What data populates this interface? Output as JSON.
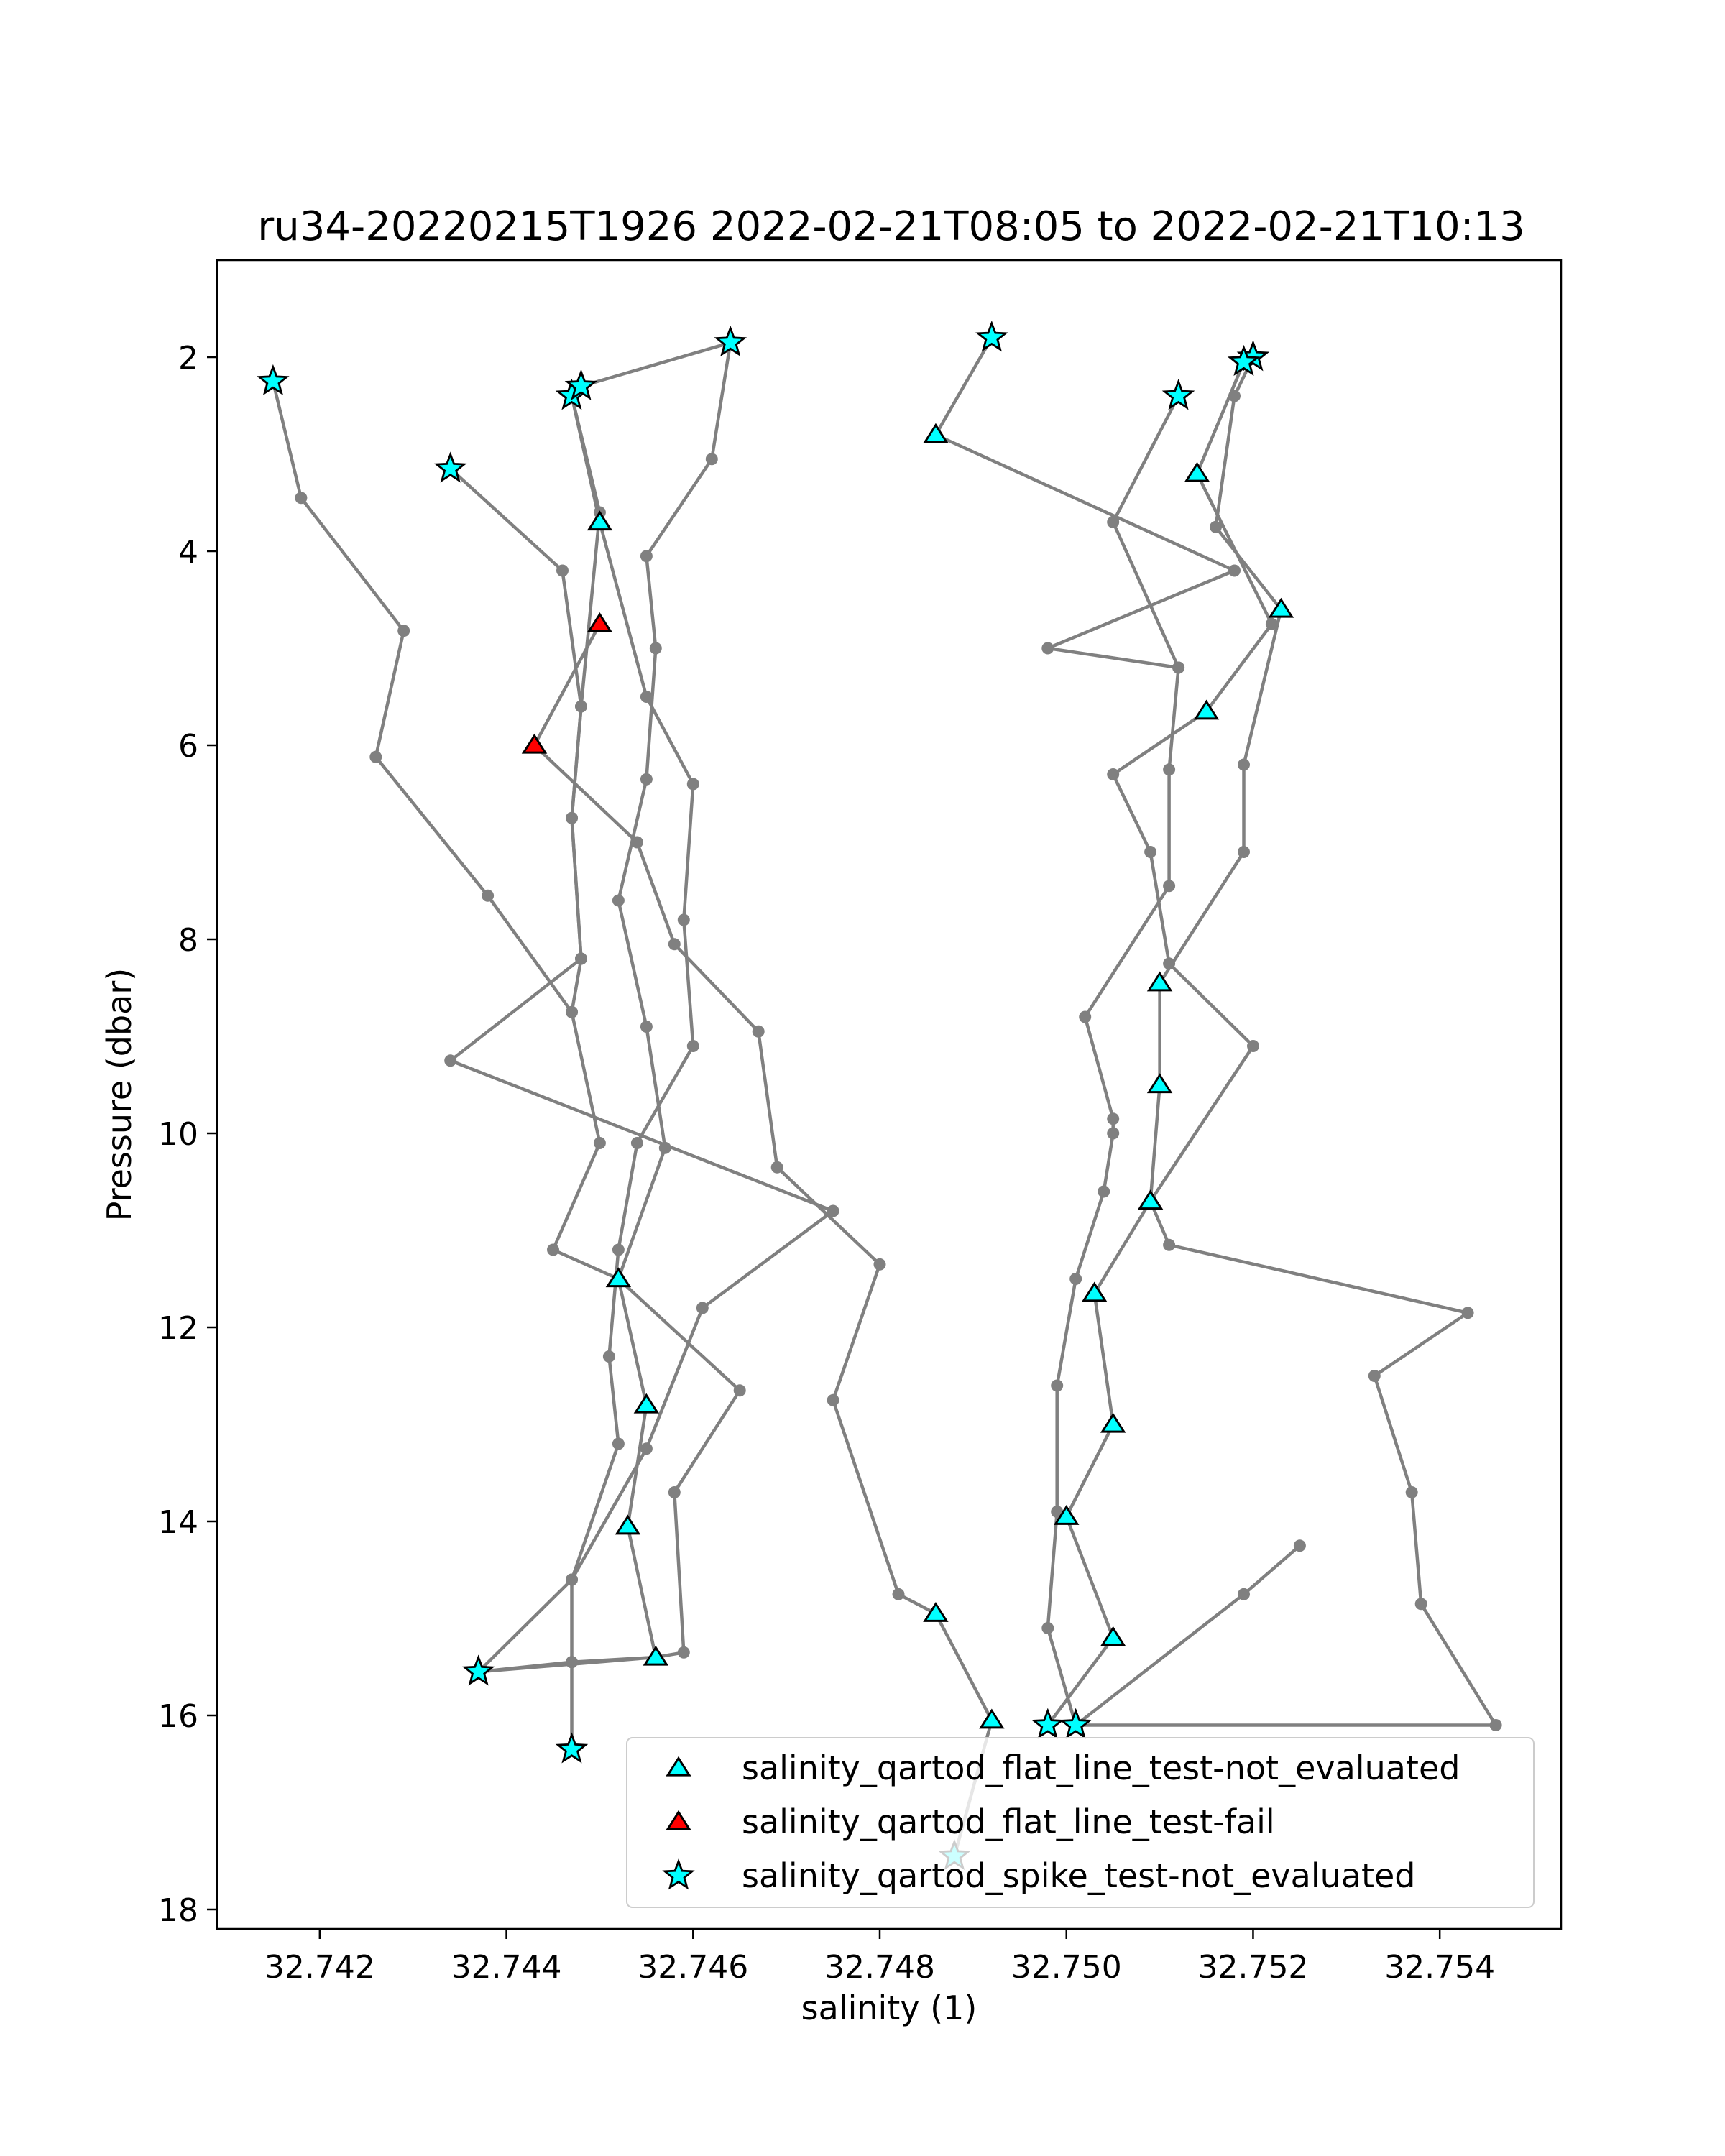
{
  "chart_data": {
    "type": "scatter",
    "title": "ru34-20220215T1926 2022-02-21T08:05 to 2022-02-21T10:13",
    "xlabel": "salinity (1)",
    "ylabel": "Pressure (dbar)",
    "xlim": [
      32.7409,
      32.7553
    ],
    "ylim": [
      18.2,
      1.0
    ],
    "y_inverted": true,
    "grid": false,
    "x_ticks": [
      32.742,
      32.744,
      32.746,
      32.748,
      32.75,
      32.752,
      32.754
    ],
    "x_tick_labels": [
      "32.742",
      "32.744",
      "32.746",
      "32.748",
      "32.750",
      "32.752",
      "32.754"
    ],
    "y_ticks": [
      2,
      4,
      6,
      8,
      10,
      12,
      14,
      16,
      18
    ],
    "y_tick_labels": [
      "2",
      "4",
      "6",
      "8",
      "10",
      "12",
      "14",
      "16",
      "18"
    ],
    "colors": {
      "trace": "#808080",
      "not_evaluated": "#00ffff",
      "fail": "#ff0000",
      "edge": "#000000"
    },
    "legend_position": "lower-right",
    "legend": [
      {
        "label": "salinity_qartod_flat_line_test-not_evaluated",
        "marker": "triangle",
        "color": "#00ffff"
      },
      {
        "label": "salinity_qartod_flat_line_test-fail",
        "marker": "triangle",
        "color": "#ff0000"
      },
      {
        "label": "salinity_qartod_spike_test-not_evaluated",
        "marker": "star",
        "color": "#00ffff"
      }
    ],
    "series": [
      {
        "values": [
          [
            32.7415,
            2.25
          ],
          [
            32.7418,
            3.45
          ],
          [
            32.7429,
            4.82
          ],
          [
            32.7426,
            6.12
          ],
          [
            32.7438,
            7.55
          ],
          [
            32.7447,
            8.75
          ],
          [
            32.7448,
            8.2
          ],
          [
            32.7447,
            6.75
          ],
          [
            32.7448,
            5.6
          ],
          [
            32.745,
            3.6
          ],
          [
            32.7447,
            2.4
          ],
          [
            32.7448,
            2.3
          ],
          [
            32.7464,
            1.85
          ],
          [
            32.7462,
            3.05
          ],
          [
            32.7455,
            4.05
          ],
          [
            32.7456,
            5.0
          ],
          [
            32.7455,
            6.35
          ],
          [
            32.7452,
            7.6
          ],
          [
            32.7455,
            8.9
          ],
          [
            32.7457,
            10.15
          ],
          [
            32.7452,
            11.5
          ],
          [
            32.7455,
            12.8
          ],
          [
            32.7453,
            14.05
          ],
          [
            32.7456,
            15.4
          ],
          [
            32.7437,
            15.55
          ],
          [
            32.7447,
            14.6
          ],
          [
            32.7452,
            13.2
          ],
          [
            32.7451,
            12.3
          ],
          [
            32.7452,
            11.2
          ],
          [
            32.7454,
            10.1
          ],
          [
            32.746,
            9.1
          ],
          [
            32.7459,
            7.8
          ],
          [
            32.746,
            6.4
          ],
          [
            32.7455,
            5.5
          ],
          [
            32.745,
            3.7
          ],
          [
            32.7447,
            2.4
          ]
        ]
      },
      {
        "values": [
          [
            32.7434,
            3.15
          ],
          [
            32.7446,
            4.2
          ],
          [
            32.7448,
            5.6
          ],
          [
            32.7447,
            6.75
          ],
          [
            32.7448,
            8.2
          ],
          [
            32.7434,
            9.25
          ],
          [
            32.7475,
            10.8
          ],
          [
            32.7461,
            11.8
          ],
          [
            32.7455,
            13.25
          ],
          [
            32.7447,
            14.6
          ],
          [
            32.7447,
            15.45
          ],
          [
            32.7447,
            16.35
          ]
        ]
      },
      {
        "values": [
          [
            32.745,
            4.75
          ],
          [
            32.7443,
            6.0
          ],
          [
            32.7454,
            7.0
          ],
          [
            32.7458,
            8.05
          ],
          [
            32.7467,
            8.95
          ],
          [
            32.7469,
            10.35
          ],
          [
            32.748,
            11.35
          ],
          [
            32.7475,
            12.75
          ],
          [
            32.7482,
            14.75
          ],
          [
            32.7486,
            14.95
          ],
          [
            32.7492,
            16.05
          ],
          [
            32.7488,
            17.45
          ]
        ]
      },
      {
        "values": [
          [
            32.7437,
            15.55
          ],
          [
            32.7447,
            15.45
          ],
          [
            32.7456,
            15.4
          ],
          [
            32.7459,
            15.35
          ],
          [
            32.7458,
            13.7
          ],
          [
            32.7465,
            12.65
          ],
          [
            32.7452,
            11.5
          ],
          [
            32.7445,
            11.2
          ],
          [
            32.745,
            10.1
          ],
          [
            32.7447,
            8.75
          ]
        ]
      },
      {
        "values": [
          [
            32.7492,
            1.8
          ],
          [
            32.7486,
            2.8
          ],
          [
            32.7518,
            4.2
          ],
          [
            32.7498,
            5.0
          ],
          [
            32.7512,
            5.2
          ],
          [
            32.7505,
            3.7
          ],
          [
            32.7512,
            2.4
          ]
        ]
      },
      {
        "values": [
          [
            32.752,
            2.0
          ],
          [
            32.7518,
            2.4
          ],
          [
            32.7516,
            3.75
          ],
          [
            32.7523,
            4.6
          ],
          [
            32.7519,
            6.2
          ],
          [
            32.7519,
            7.1
          ],
          [
            32.751,
            8.45
          ],
          [
            32.751,
            9.5
          ],
          [
            32.7509,
            10.7
          ],
          [
            32.7503,
            11.65
          ],
          [
            32.7505,
            13.0
          ],
          [
            32.75,
            13.95
          ],
          [
            32.7505,
            15.2
          ],
          [
            32.7498,
            16.1
          ]
        ]
      },
      {
        "values": [
          [
            32.7519,
            2.05
          ],
          [
            32.7514,
            3.2
          ],
          [
            32.7522,
            4.75
          ],
          [
            32.7515,
            5.65
          ],
          [
            32.7505,
            6.3
          ],
          [
            32.7509,
            7.1
          ],
          [
            32.7511,
            8.25
          ],
          [
            32.752,
            9.1
          ],
          [
            32.7509,
            10.7
          ],
          [
            32.7511,
            11.15
          ],
          [
            32.7543,
            11.85
          ],
          [
            32.7533,
            12.5
          ],
          [
            32.7537,
            13.7
          ],
          [
            32.7538,
            14.85
          ],
          [
            32.7546,
            16.1
          ],
          [
            32.7501,
            16.1
          ]
        ]
      },
      {
        "values": [
          [
            32.7512,
            5.2
          ],
          [
            32.7511,
            6.25
          ],
          [
            32.7511,
            7.45
          ],
          [
            32.7502,
            8.8
          ],
          [
            32.7505,
            9.85
          ],
          [
            32.7505,
            10.0
          ],
          [
            32.7504,
            10.6
          ],
          [
            32.7501,
            11.5
          ],
          [
            32.7499,
            12.6
          ],
          [
            32.7499,
            13.9
          ],
          [
            32.7498,
            15.1
          ],
          [
            32.7501,
            16.1
          ],
          [
            32.7519,
            14.75
          ],
          [
            32.7525,
            14.25
          ]
        ]
      }
    ],
    "flat_line_not_evaluated": [
      [
        32.745,
        3.7
      ],
      [
        32.7452,
        11.5
      ],
      [
        32.7455,
        12.8
      ],
      [
        32.7453,
        14.05
      ],
      [
        32.7456,
        15.4
      ],
      [
        32.7486,
        14.95
      ],
      [
        32.7492,
        16.05
      ],
      [
        32.7486,
        2.8
      ],
      [
        32.7514,
        3.2
      ],
      [
        32.7523,
        4.6
      ],
      [
        32.7515,
        5.65
      ],
      [
        32.751,
        8.45
      ],
      [
        32.751,
        9.5
      ],
      [
        32.7509,
        10.7
      ],
      [
        32.7503,
        11.65
      ],
      [
        32.7505,
        13.0
      ],
      [
        32.75,
        13.95
      ],
      [
        32.7505,
        15.2
      ]
    ],
    "flat_line_fail": [
      [
        32.745,
        4.75
      ],
      [
        32.7443,
        6.0
      ]
    ],
    "spike_not_evaluated": [
      [
        32.7415,
        2.25
      ],
      [
        32.7434,
        3.15
      ],
      [
        32.7447,
        2.4
      ],
      [
        32.7448,
        2.3
      ],
      [
        32.7464,
        1.85
      ],
      [
        32.7437,
        15.55
      ],
      [
        32.7447,
        16.35
      ],
      [
        32.7488,
        17.45
      ],
      [
        32.7492,
        1.8
      ],
      [
        32.7512,
        2.4
      ],
      [
        32.752,
        2.0
      ],
      [
        32.7519,
        2.05
      ],
      [
        32.7498,
        16.1
      ],
      [
        32.7501,
        16.1
      ]
    ]
  }
}
